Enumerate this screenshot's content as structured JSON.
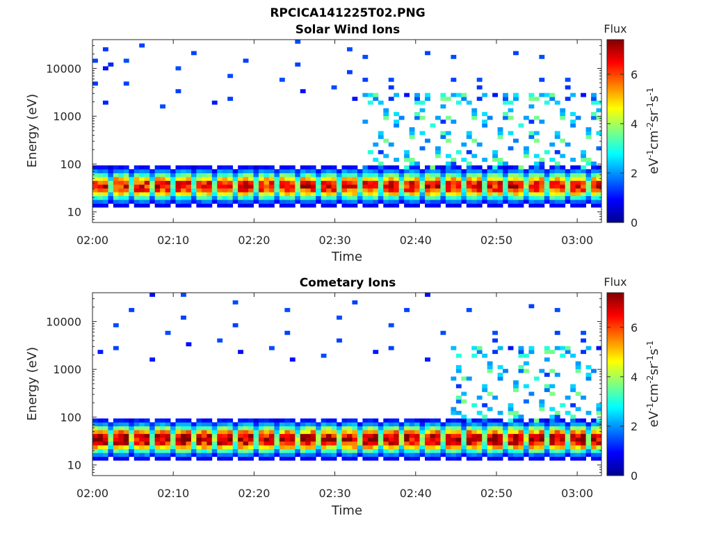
{
  "figure_title": "RPCICA141225T02.PNG",
  "chart_data": [
    {
      "type": "heatmap",
      "title": "Solar Wind Ions",
      "xlabel": "Time",
      "ylabel": "Energy (eV)",
      "x_ticks": [
        "02:00",
        "02:10",
        "02:20",
        "02:30",
        "02:40",
        "02:50",
        "03:00"
      ],
      "x_range_minutes": [
        0,
        63
      ],
      "y_scale": "log",
      "y_range": [
        6,
        40000
      ],
      "y_ticks": [
        10,
        100,
        1000,
        10000
      ],
      "y_tick_labels": [
        "10",
        "100",
        "1000",
        "10000"
      ],
      "colorbar": {
        "title": "Flux",
        "label": "eV-1cm-2sr-1s-1",
        "range": [
          0,
          7.4
        ],
        "ticks": [
          "0",
          "2",
          "4",
          "6"
        ],
        "colormap": "jet"
      },
      "grid": false,
      "core_energy_eV": 35,
      "core_peak_flux": 6.5,
      "hot_tail_extends_after_minute": 33
    },
    {
      "type": "heatmap",
      "title": "Cometary Ions",
      "xlabel": "Time",
      "ylabel": "Energy (eV)",
      "x_ticks": [
        "02:00",
        "02:10",
        "02:20",
        "02:30",
        "02:40",
        "02:50",
        "03:00"
      ],
      "x_range_minutes": [
        0,
        63
      ],
      "y_scale": "log",
      "y_range": [
        6,
        40000
      ],
      "y_ticks": [
        10,
        100,
        1000,
        10000
      ],
      "y_tick_labels": [
        "10",
        "100",
        "1000",
        "10000"
      ],
      "colorbar": {
        "title": "Flux",
        "label": "eV-1cm-2sr-1s-1",
        "range": [
          0,
          7.4
        ],
        "ticks": [
          "0",
          "2",
          "4",
          "6"
        ],
        "colormap": "jet"
      },
      "grid": false,
      "core_energy_eV": 35,
      "core_peak_flux": 7.0,
      "hot_tail_extends_after_minute": 44
    }
  ]
}
